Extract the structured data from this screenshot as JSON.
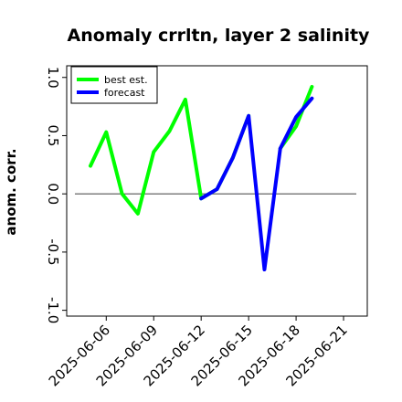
{
  "chart_data": {
    "type": "line",
    "title": "Anomaly crrltn, layer 2 salinity",
    "xlabel": "",
    "ylabel": "anom. corr.",
    "x": [
      "2025-06-05",
      "2025-06-06",
      "2025-06-07",
      "2025-06-08",
      "2025-06-09",
      "2025-06-10",
      "2025-06-11",
      "2025-06-12",
      "2025-06-13",
      "2025-06-14",
      "2025-06-15",
      "2025-06-16",
      "2025-06-17",
      "2025-06-18",
      "2025-06-19",
      "2025-06-20"
    ],
    "xticks": [
      "2025-06-06",
      "2025-06-09",
      "2025-06-12",
      "2025-06-15",
      "2025-06-18",
      "2025-06-21"
    ],
    "xtick_colors": [
      "#000000",
      "#000000",
      "#228B22",
      "#000000",
      "#000000",
      "#000000"
    ],
    "yticks": [
      "-1.0",
      "-0.5",
      "0.0",
      "0.5",
      "1.0"
    ],
    "ytick_values": [
      -1.0,
      -0.5,
      0.0,
      0.5,
      1.0
    ],
    "ylim": [
      -1.05,
      1.1
    ],
    "xlim": [
      "2025-06-03T12:00",
      "2025-06-22T12:00"
    ],
    "hline": 0.0,
    "series": [
      {
        "name": "best est.",
        "color": "#00ff00",
        "values": [
          0.24,
          0.53,
          0.0,
          -0.17,
          0.36,
          0.54,
          0.81,
          -0.04,
          0.04,
          0.31,
          0.67,
          null,
          0.39,
          0.58,
          0.92,
          null
        ]
      },
      {
        "name": "forecast",
        "color": "#0000ff",
        "values": [
          null,
          null,
          null,
          null,
          null,
          null,
          null,
          -0.04,
          0.04,
          0.31,
          0.67,
          -0.65,
          0.39,
          0.66,
          0.82,
          null
        ]
      }
    ],
    "legend_position": "top-left",
    "grid": false
  }
}
